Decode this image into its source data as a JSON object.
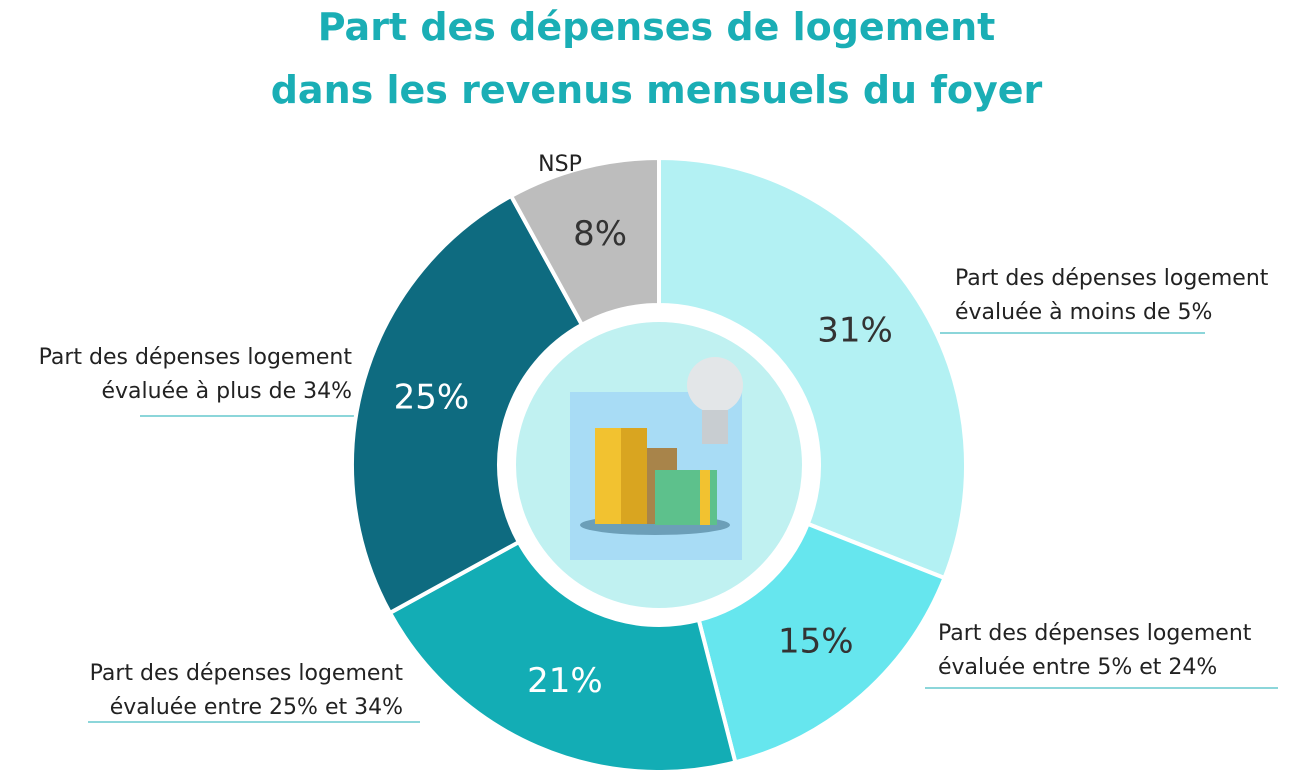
{
  "chart_data": {
    "type": "donut",
    "title": [
      "Part des dépenses de logement",
      "dans les revenus mensuels du foyer"
    ],
    "categories": [
      "Part des dépenses logement évaluée à moins de 5%",
      "Part des dépenses logement évaluée entre 5% et 24%",
      "Part des dépenses logement évaluée entre 25% et 34%",
      "Part des dépenses logement évaluée à plus de 34%",
      "NSP"
    ],
    "values": [
      31,
      15,
      21,
      25,
      8
    ],
    "value_labels": [
      "31%",
      "15%",
      "21%",
      "25%",
      "8%"
    ],
    "colors": [
      "#b3f1f3",
      "#66e6ee",
      "#13adb5",
      "#0e6b80",
      "#bdbdbd"
    ],
    "label_colors": [
      "#333333",
      "#333333",
      "#ffffff",
      "#ffffff",
      "#333333"
    ]
  }
}
